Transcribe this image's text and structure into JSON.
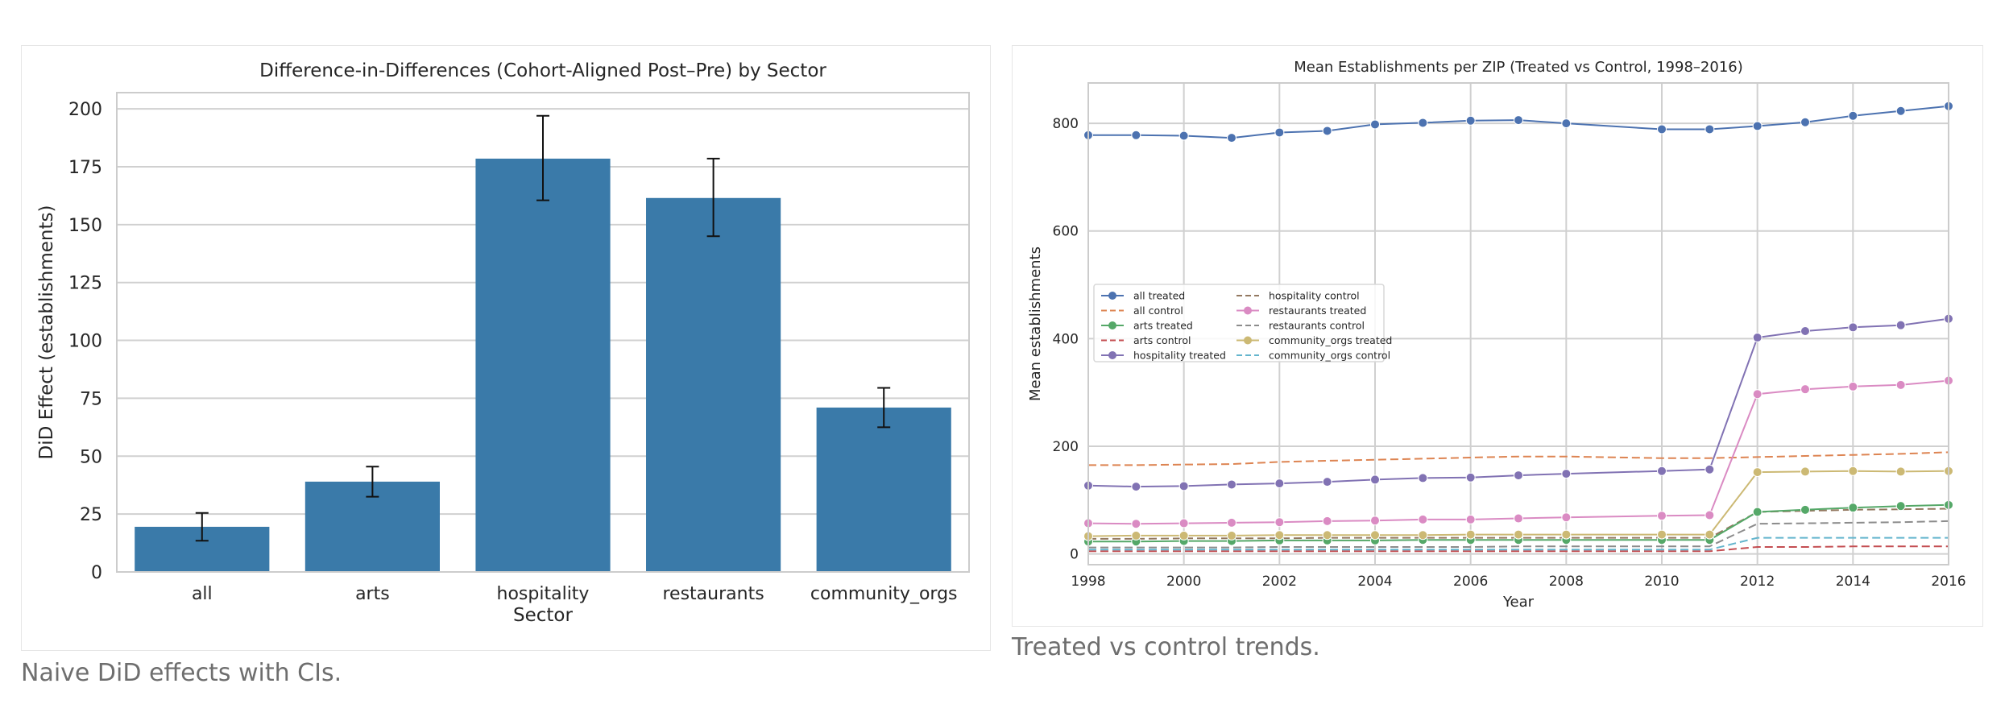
{
  "captions": {
    "left": "Naive DiD effects with CIs.",
    "right": "Treated vs control trends."
  },
  "colors": {
    "bar": "#3a7aa9",
    "all": "#4c72b0",
    "arts": "#55a868",
    "hospitality": "#8172b3",
    "restaurants": "#da8bc3",
    "community_orgs": "#ccb974",
    "all_control": "#dd8452",
    "arts_control": "#c44e52",
    "hospitality_control": "#937860",
    "restaurants_control": "#8c8c8c",
    "community_orgs_control": "#64b5cd"
  },
  "chart_data": [
    {
      "type": "bar",
      "title": "Difference-in-Differences (Cohort-Aligned Post–Pre) by Sector",
      "xlabel": "Sector",
      "ylabel": "DiD Effect (establishments)",
      "ylim": [
        0,
        207
      ],
      "yticks": [
        0,
        25,
        50,
        75,
        100,
        125,
        150,
        175,
        200
      ],
      "categories": [
        "all",
        "arts",
        "hospitality",
        "restaurants",
        "community_orgs"
      ],
      "values": [
        19.5,
        39,
        178.5,
        161.5,
        71
      ],
      "ci_low": [
        13.5,
        32.5,
        160.5,
        145,
        62.5
      ],
      "ci_high": [
        25.5,
        45.5,
        197,
        178.5,
        79.5
      ],
      "grid": true
    },
    {
      "type": "line",
      "title": "Mean Establishments per ZIP (Treated vs Control, 1998–2016)",
      "xlabel": "Year",
      "ylabel": "Mean establishments",
      "xlim": [
        1998,
        2016
      ],
      "ylim": [
        -20,
        875
      ],
      "xticks": [
        1998,
        2000,
        2002,
        2004,
        2006,
        2008,
        2010,
        2012,
        2014,
        2016
      ],
      "yticks": [
        0,
        200,
        400,
        600,
        800
      ],
      "x": [
        1998,
        1999,
        2000,
        2001,
        2002,
        2003,
        2004,
        2005,
        2006,
        2007,
        2008,
        2010,
        2011,
        2012,
        2013,
        2014,
        2015,
        2016
      ],
      "legend_position": "center-left",
      "series": [
        {
          "name": "all treated",
          "style": "solid-marker",
          "color_key": "all",
          "values": [
            778,
            778,
            777,
            773,
            783,
            786,
            798,
            801,
            805,
            806,
            800,
            789,
            789,
            795,
            802,
            814,
            823,
            832
          ]
        },
        {
          "name": "all control",
          "style": "dashed",
          "color_key": "all_control",
          "values": [
            165,
            165,
            166,
            167,
            171,
            173,
            175,
            177,
            179,
            181,
            181,
            178,
            178,
            180,
            182,
            184,
            186,
            189
          ]
        },
        {
          "name": "arts treated",
          "style": "solid-marker",
          "color_key": "arts",
          "values": [
            23,
            23,
            24,
            24,
            25,
            25,
            25,
            26,
            26,
            26,
            26,
            26,
            26,
            78,
            82,
            86,
            89,
            91
          ]
        },
        {
          "name": "arts control",
          "style": "dashed",
          "color_key": "arts_control",
          "values": [
            5,
            5,
            5,
            5,
            5,
            5,
            5,
            5,
            5,
            5,
            5,
            5,
            5,
            13,
            13,
            14,
            14,
            14
          ]
        },
        {
          "name": "hospitality treated",
          "style": "solid-marker",
          "color_key": "hospitality",
          "values": [
            127,
            125,
            126,
            129,
            131,
            134,
            138,
            141,
            142,
            146,
            149,
            154,
            157,
            402,
            414,
            421,
            425,
            437
          ]
        },
        {
          "name": "hospitality control",
          "style": "dashed",
          "color_key": "hospitality_control",
          "values": [
            28,
            28,
            29,
            29,
            29,
            30,
            30,
            30,
            30,
            30,
            30,
            30,
            30,
            78,
            80,
            82,
            83,
            84
          ]
        },
        {
          "name": "restaurants treated",
          "style": "solid-marker",
          "color_key": "restaurants",
          "values": [
            57,
            56,
            57,
            58,
            59,
            61,
            62,
            64,
            64,
            66,
            68,
            71,
            72,
            297,
            306,
            311,
            314,
            322
          ]
        },
        {
          "name": "restaurants control",
          "style": "dashed",
          "color_key": "restaurants_control",
          "values": [
            12,
            12,
            12,
            12,
            13,
            13,
            13,
            13,
            13,
            14,
            14,
            14,
            14,
            56,
            57,
            58,
            59,
            61
          ]
        },
        {
          "name": "community_orgs treated",
          "style": "solid-marker",
          "color_key": "community_orgs",
          "values": [
            33,
            34,
            34,
            34,
            35,
            35,
            35,
            35,
            36,
            36,
            36,
            36,
            36,
            152,
            153,
            154,
            153,
            154
          ]
        },
        {
          "name": "community_orgs control",
          "style": "dashed",
          "color_key": "community_orgs_control",
          "values": [
            8,
            8,
            8,
            8,
            8,
            8,
            8,
            8,
            8,
            8,
            8,
            8,
            8,
            30,
            30,
            30,
            30,
            30
          ]
        }
      ],
      "grid": true
    }
  ]
}
